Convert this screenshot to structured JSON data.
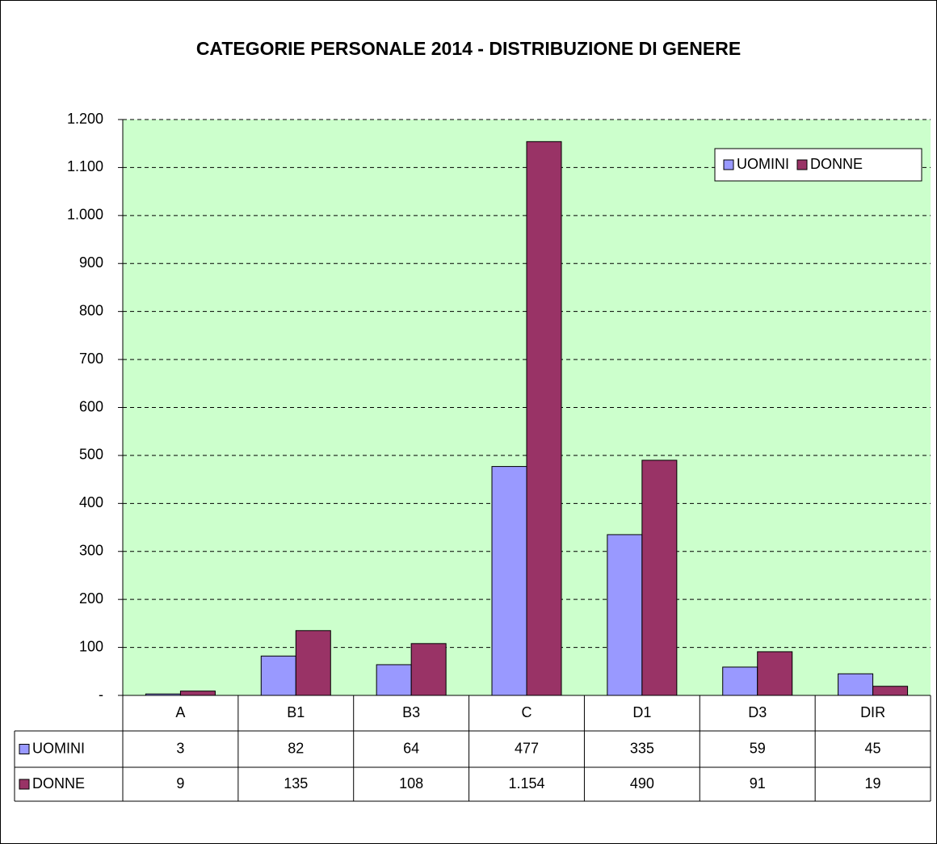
{
  "chart_data": {
    "type": "bar",
    "title": "CATEGORIE PERSONALE 2014 - DISTRIBUZIONE DI GENERE",
    "categories": [
      "A",
      "B1",
      "B3",
      "C",
      "D1",
      "D3",
      "DIR"
    ],
    "series": [
      {
        "name": "UOMINI",
        "color": "#9999ff",
        "values": [
          3,
          82,
          64,
          477,
          335,
          59,
          45
        ]
      },
      {
        "name": "DONNE",
        "color": "#993366",
        "values": [
          9,
          135,
          108,
          1154,
          490,
          91,
          19
        ],
        "value_labels": [
          "9",
          "135",
          "108",
          "1.154",
          "490",
          "91",
          "19"
        ]
      }
    ],
    "ylim": [
      0,
      1200
    ],
    "yticks": [
      {
        "value": 0,
        "label": "-"
      },
      100,
      200,
      300,
      400,
      500,
      600,
      700,
      800,
      900,
      {
        "value": 1000,
        "label": "1.000"
      },
      {
        "value": 1100,
        "label": "1.100"
      },
      {
        "value": 1200,
        "label": "1.200"
      }
    ],
    "grid": true,
    "plot_background": "#ccffcc",
    "legend": "top-right"
  }
}
